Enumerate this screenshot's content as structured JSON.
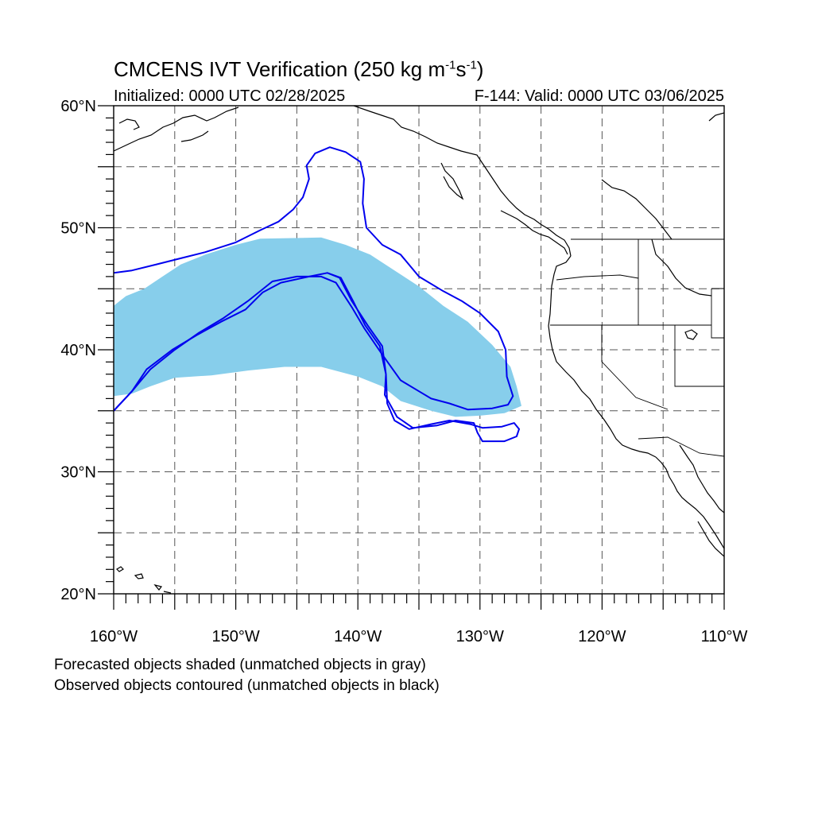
{
  "title": {
    "text": "CMCENS IVT Verification (250 kg m",
    "exp1": "-1",
    "mid": "s",
    "exp2": "-1",
    "end": ")"
  },
  "init_text": "Initialized: 0000 UTC 02/28/2025",
  "valid_text": "F-144: Valid: 0000 UTC 03/06/2025",
  "captions": [
    "Forecasted objects shaded (unmatched objects in gray)",
    "Observed objects contoured (unmatched objects in black)"
  ],
  "map": {
    "projection": "cylindrical equidistant",
    "lon_range": [
      -160,
      -110
    ],
    "lat_range": [
      20,
      60
    ],
    "lat_labels": [
      {
        "lat": 60,
        "text": "60°N"
      },
      {
        "lat": 50,
        "text": "50°N"
      },
      {
        "lat": 40,
        "text": "40°N"
      },
      {
        "lat": 30,
        "text": "30°N"
      },
      {
        "lat": 20,
        "text": "20°N"
      }
    ],
    "lon_labels": [
      {
        "lon": -160,
        "text": "160°W"
      },
      {
        "lon": -150,
        "text": "150°W"
      },
      {
        "lon": -140,
        "text": "140°W"
      },
      {
        "lon": -130,
        "text": "130°W"
      },
      {
        "lon": -120,
        "text": "120°W"
      },
      {
        "lon": -110,
        "text": "110°W"
      }
    ],
    "grid_lons": [
      -155,
      -150,
      -145,
      -140,
      -135,
      -130,
      -125,
      -120,
      -115
    ],
    "grid_lats": [
      25,
      30,
      35,
      40,
      45,
      50,
      55
    ],
    "grid_style": "dashed",
    "colors": {
      "forecast_fill": "#87CEEB",
      "observed_contour": "#0000EE",
      "coastline": "#000000"
    },
    "forecast_object": {
      "name": "forecast-ivt-object",
      "polygon": [
        [
          -160,
          43.6
        ],
        [
          -159,
          44.4
        ],
        [
          -157.5,
          45.0
        ],
        [
          -156,
          46.0
        ],
        [
          -154.5,
          47.0
        ],
        [
          -152.5,
          47.8
        ],
        [
          -150,
          48.6
        ],
        [
          -148,
          49.1
        ],
        [
          -143,
          49.2
        ],
        [
          -141,
          48.6
        ],
        [
          -139,
          47.8
        ],
        [
          -137,
          46.5
        ],
        [
          -135,
          45.2
        ],
        [
          -133,
          43.6
        ],
        [
          -131,
          42.3
        ],
        [
          -129,
          40.4
        ],
        [
          -127.5,
          38.6
        ],
        [
          -127,
          37.0
        ],
        [
          -126.6,
          35.4
        ],
        [
          -128,
          34.8
        ],
        [
          -130,
          34.6
        ],
        [
          -132,
          34.5
        ],
        [
          -134,
          35.0
        ],
        [
          -136.5,
          35.8
        ],
        [
          -138,
          37.0
        ],
        [
          -140,
          37.8
        ],
        [
          -143,
          38.6
        ],
        [
          -146,
          38.6
        ],
        [
          -149,
          38.3
        ],
        [
          -152,
          37.9
        ],
        [
          -155,
          37.7
        ],
        [
          -157,
          37.0
        ],
        [
          -158.5,
          36.4
        ],
        [
          -160,
          36.2
        ]
      ]
    },
    "observed_objects": [
      {
        "name": "observed-northern-contour",
        "polygon": [
          [
            -160,
            46.3
          ],
          [
            -158.5,
            46.5
          ],
          [
            -156.5,
            47.0
          ],
          [
            -154.5,
            47.5
          ],
          [
            -152.5,
            48.0
          ],
          [
            -150,
            48.8
          ],
          [
            -148,
            49.8
          ],
          [
            -146.5,
            50.5
          ],
          [
            -145.3,
            51.5
          ],
          [
            -144.5,
            52.5
          ],
          [
            -144.0,
            54.0
          ],
          [
            -144.2,
            55.1
          ],
          [
            -143.5,
            56.1
          ],
          [
            -142.3,
            56.6
          ],
          [
            -141.0,
            56.2
          ],
          [
            -139.8,
            55.4
          ],
          [
            -139.5,
            54.0
          ],
          [
            -139.6,
            52.0
          ],
          [
            -139.3,
            50.0
          ],
          [
            -138,
            48.6
          ],
          [
            -136.5,
            47.8
          ],
          [
            -135,
            46.0
          ],
          [
            -133,
            44.8
          ],
          [
            -131.5,
            44.0
          ],
          [
            -130,
            43.0
          ],
          [
            -128.5,
            41.5
          ],
          [
            -127.9,
            40.0
          ],
          [
            -127.8,
            37.8
          ],
          [
            -127.3,
            36.2
          ],
          [
            -127.7,
            35.5
          ],
          [
            -129,
            35.2
          ],
          [
            -131,
            35.1
          ],
          [
            -132.5,
            35.6
          ],
          [
            -134,
            36.0
          ],
          [
            -135,
            36.6
          ],
          [
            -136.5,
            37.5
          ],
          [
            -138,
            39.6
          ],
          [
            -139.5,
            41.8
          ],
          [
            -140.5,
            43.5
          ],
          [
            -141.8,
            45.5
          ],
          [
            -143,
            46.0
          ],
          [
            -145,
            46.0
          ],
          [
            -147,
            45.6
          ],
          [
            -149,
            44.0
          ],
          [
            -151,
            42.6
          ],
          [
            -153,
            41.4
          ],
          [
            -155,
            40.0
          ],
          [
            -157,
            38.4
          ],
          [
            -158.5,
            36.6
          ],
          [
            -160,
            35.0
          ]
        ]
      },
      {
        "name": "observed-southern-contour",
        "polygon": [
          [
            -160,
            35.0
          ],
          [
            -158.5,
            36.6
          ],
          [
            -157.3,
            38.4
          ],
          [
            -155.2,
            40.0
          ],
          [
            -153.2,
            41.2
          ],
          [
            -151.2,
            42.3
          ],
          [
            -149.2,
            43.3
          ],
          [
            -147.8,
            44.7
          ],
          [
            -146.3,
            45.5
          ],
          [
            -144,
            46.0
          ],
          [
            -142.5,
            46.3
          ],
          [
            -141.5,
            45.9
          ],
          [
            -140.5,
            44.0
          ],
          [
            -139.2,
            42.0
          ],
          [
            -138.0,
            40.3
          ],
          [
            -137.7,
            38.0
          ],
          [
            -137.8,
            36.3
          ],
          [
            -136.8,
            34.5
          ],
          [
            -135.5,
            33.6
          ],
          [
            -133.5,
            33.8
          ],
          [
            -132.0,
            34.2
          ],
          [
            -130.5,
            34.0
          ],
          [
            -130.2,
            33.2
          ],
          [
            -129.8,
            32.5
          ],
          [
            -128.0,
            32.5
          ],
          [
            -127.0,
            32.9
          ],
          [
            -126.8,
            33.5
          ],
          [
            -127.2,
            34.0
          ],
          [
            -128.2,
            33.7
          ],
          [
            -129.8,
            33.6
          ],
          [
            -130.8,
            33.9
          ],
          [
            -132.5,
            34.2
          ],
          [
            -134,
            33.9
          ],
          [
            -135.8,
            33.5
          ],
          [
            -137,
            34.2
          ],
          [
            -137.6,
            35.6
          ],
          [
            -137.7,
            38.0
          ],
          [
            -138.2,
            40.3
          ],
          [
            -139.4,
            42.0
          ],
          [
            -140.4,
            44.0
          ],
          [
            -141.4,
            45.9
          ],
          [
            -142.5,
            46.3
          ],
          [
            -144,
            46.0
          ],
          [
            -146.3,
            45.5
          ],
          [
            -147.8,
            44.7
          ],
          [
            -149.2,
            43.3
          ],
          [
            -151.2,
            42.3
          ],
          [
            -153.2,
            41.2
          ],
          [
            -155.2,
            40.0
          ],
          [
            -157.3,
            38.4
          ],
          [
            -158.5,
            36.6
          ],
          [
            -160,
            35.0
          ]
        ]
      }
    ]
  }
}
